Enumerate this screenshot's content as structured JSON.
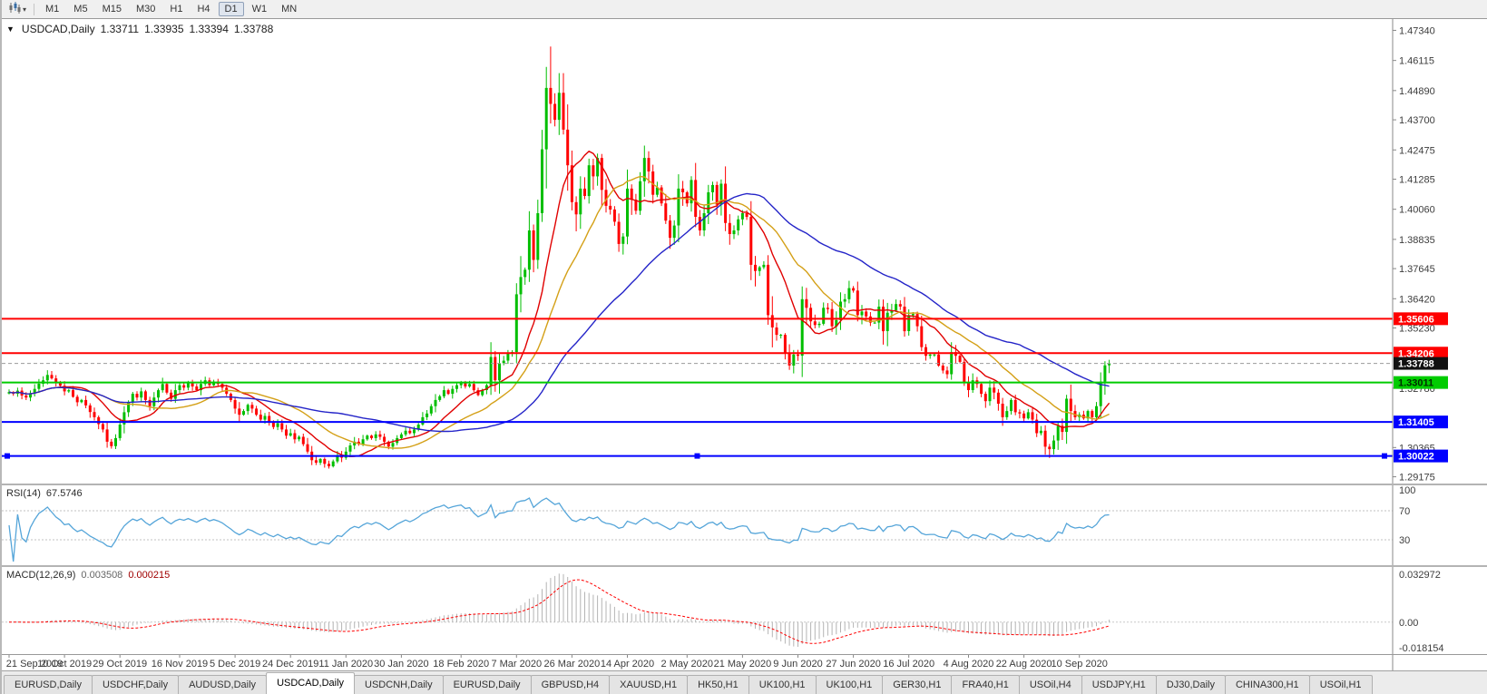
{
  "toolbar": {
    "chart_type_icon": "candlestick-chart-icon",
    "dropdown_icon": "chevron-down-icon",
    "timeframes": [
      "M1",
      "M5",
      "M15",
      "M30",
      "H1",
      "H4",
      "D1",
      "W1",
      "MN"
    ],
    "active_timeframe": "D1"
  },
  "info_line": {
    "collapse_icon": "▼",
    "symbol": "USDCAD,Daily",
    "open": "1.33711",
    "high": "1.33935",
    "low": "1.33394",
    "close": "1.33788"
  },
  "rsi_pane": {
    "label": "RSI(14)",
    "value": "67.5746",
    "ticks": [
      "100",
      "70",
      "30"
    ]
  },
  "macd_pane": {
    "label": "MACD(12,26,9)",
    "value_main": "0.003508",
    "value_signal": "0.000215",
    "tick_top": "0.032972",
    "tick_zero": "0.00",
    "tick_bottom": "-0.018154"
  },
  "tabs": {
    "active_index": 3,
    "items": [
      "EURUSD,Daily",
      "USDCHF,Daily",
      "AUDUSD,Daily",
      "USDCAD,Daily",
      "USDCNH,Daily",
      "EURUSD,Daily",
      "GBPUSD,H4",
      "XAUUSD,H1",
      "HK50,H1",
      "UK100,H1",
      "UK100,H1",
      "GER30,H1",
      "FRA40,H1",
      "USOil,H4",
      "USDJPY,H1",
      "DJ30,Daily",
      "CHINA300,H1",
      "USOil,H1"
    ]
  },
  "chart_data": {
    "type": "candlestick",
    "symbol": "USDCAD",
    "timeframe": "Daily",
    "price_axis": {
      "pane_max": 1.478,
      "pane_min": 1.289,
      "ticks": [
        "1.47340",
        "1.46115",
        "1.44890",
        "1.43700",
        "1.42475",
        "1.41285",
        "1.40060",
        "1.38835",
        "1.37645",
        "1.36420",
        "1.35230",
        "1.32780",
        "1.30365",
        "1.29175"
      ]
    },
    "date_labels": [
      "21 Sep 2019",
      "10 Oct 2019",
      "29 Oct 2019",
      "16 Nov 2019",
      "5 Dec 2019",
      "24 Dec 2019",
      "11 Jan 2020",
      "30 Jan 2020",
      "18 Feb 2020",
      "7 Mar 2020",
      "26 Mar 2020",
      "14 Apr 2020",
      "2 May 2020",
      "21 May 2020",
      "9 Jun 2020",
      "27 Jun 2020",
      "16 Jul 2020",
      "4 Aug 2020",
      "22 Aug 2020",
      "10 Sep 2020"
    ],
    "candles": {
      "up_color": "#00BE00",
      "down_color": "#FF0000",
      "closes": [
        1.3262,
        1.3255,
        1.3268,
        1.3248,
        1.324,
        1.3258,
        1.3275,
        1.3296,
        1.331,
        1.3332,
        1.3318,
        1.3301,
        1.3288,
        1.3265,
        1.327,
        1.3243,
        1.3221,
        1.323,
        1.3208,
        1.3181,
        1.316,
        1.3132,
        1.311,
        1.306,
        1.3042,
        1.3075,
        1.313,
        1.318,
        1.322,
        1.3255,
        1.324,
        1.3265,
        1.323,
        1.3205,
        1.324,
        1.327,
        1.3295,
        1.326,
        1.3235,
        1.327,
        1.329,
        1.328,
        1.33,
        1.3285,
        1.327,
        1.3295,
        1.331,
        1.329,
        1.3305,
        1.3295,
        1.328,
        1.3255,
        1.323,
        1.3195,
        1.317,
        1.3185,
        1.321,
        1.3195,
        1.317,
        1.315,
        1.3165,
        1.314,
        1.312,
        1.3135,
        1.311,
        1.3085,
        1.3095,
        1.307,
        1.308,
        1.305,
        1.302,
        1.2985,
        1.2975,
        1.299,
        1.297,
        1.296,
        1.298,
        1.3005,
        1.2995,
        1.302,
        1.3045,
        1.306,
        1.305,
        1.307,
        1.3085,
        1.3075,
        1.309,
        1.308,
        1.306,
        1.304,
        1.3055,
        1.3075,
        1.309,
        1.3105,
        1.3095,
        1.311,
        1.313,
        1.316,
        1.3175,
        1.3205,
        1.323,
        1.3245,
        1.327,
        1.3255,
        1.3275,
        1.329,
        1.33,
        1.3285,
        1.3295,
        1.327,
        1.325,
        1.327,
        1.329,
        1.3405,
        1.331,
        1.338,
        1.339,
        1.342,
        1.3425,
        1.366,
        1.373,
        1.376,
        1.392,
        1.38,
        1.399,
        1.425,
        1.45,
        1.4435,
        1.437,
        1.448,
        1.433,
        1.4185,
        1.4035,
        1.3985,
        1.409,
        1.406,
        1.4185,
        1.414,
        1.4215,
        1.4085,
        1.402,
        1.4005,
        1.3955,
        1.3865,
        1.3895,
        1.409,
        1.4045,
        1.4,
        1.412,
        1.4215,
        1.416,
        1.4065,
        1.4095,
        1.403,
        1.396,
        1.389,
        1.394,
        1.409,
        1.4075,
        1.403,
        1.4125,
        1.3975,
        1.392,
        1.399,
        1.4075,
        1.4105,
        1.4025,
        1.411,
        1.395,
        1.3905,
        1.392,
        1.3965,
        1.399,
        1.3975,
        1.378,
        1.3755,
        1.377,
        1.378,
        1.3575,
        1.3525,
        1.3495,
        1.3495,
        1.342,
        1.337,
        1.3415,
        1.341,
        1.364,
        1.3605,
        1.355,
        1.3535,
        1.354,
        1.3605,
        1.36,
        1.353,
        1.3555,
        1.363,
        1.364,
        1.3685,
        1.3675,
        1.3575,
        1.359,
        1.357,
        1.3545,
        1.3545,
        1.361,
        1.351,
        1.3585,
        1.3595,
        1.362,
        1.361,
        1.351,
        1.3575,
        1.358,
        1.353,
        1.3445,
        1.341,
        1.3415,
        1.3415,
        1.337,
        1.335,
        1.3335,
        1.3425,
        1.341,
        1.3385,
        1.33,
        1.327,
        1.331,
        1.3295,
        1.3255,
        1.3225,
        1.328,
        1.326,
        1.3215,
        1.316,
        1.3185,
        1.323,
        1.318,
        1.3175,
        1.3155,
        1.318,
        1.315,
        1.3095,
        1.3105,
        1.304,
        1.303,
        1.3065,
        1.3125,
        1.31,
        1.3235,
        1.3185,
        1.316,
        1.317,
        1.3155,
        1.3185,
        1.316,
        1.3205,
        1.3305,
        1.3371,
        1.33788
      ],
      "high_overrides": {
        "113": 1.3465,
        "119": 1.3705,
        "122": 1.3998,
        "126": 1.4585,
        "127": 1.4668,
        "129": 1.456,
        "149": 1.4265,
        "197": 1.3715,
        "258": 1.33935
      },
      "low_overrides": {
        "24": 1.3032,
        "71": 1.2965,
        "75": 1.2951,
        "182": 1.3395,
        "184": 1.3338,
        "244": 1.2994,
        "258": 1.33394
      }
    },
    "last_candle": {
      "open": 1.33711,
      "high": 1.33935,
      "low": 1.33394,
      "close": 1.33788
    },
    "moving_averages": [
      {
        "name": "ma-fast-red",
        "period": 12,
        "color": "#E00000"
      },
      {
        "name": "ma-mid-yellow",
        "period": 24,
        "color": "#D4A017"
      },
      {
        "name": "ma-slow-blue",
        "period": 52,
        "color": "#2424C8"
      }
    ],
    "horizontal_lines": [
      {
        "price": 1.35606,
        "label": "1.35606",
        "color": "#FF0000",
        "text_color": "#FFFFFF",
        "selected": false
      },
      {
        "price": 1.34206,
        "label": "1.34206",
        "color": "#FF0000",
        "text_color": "#FFFFFF",
        "selected": false
      },
      {
        "price": 1.33011,
        "label": "1.33011",
        "color": "#00CC00",
        "text_color": "#002A00",
        "selected": false
      },
      {
        "price": 1.31405,
        "label": "1.31405",
        "color": "#0000FF",
        "text_color": "#FFFFFF",
        "selected": false
      },
      {
        "price": 1.30022,
        "label": "1.30022",
        "color": "#0000FF",
        "text_color": "#FFFFFF",
        "selected": true
      }
    ],
    "current_price": {
      "value": 1.33788,
      "label": "1.33788",
      "line_color": "#9a9a9a",
      "badge_color": "#111111"
    },
    "rsi": {
      "period": 14,
      "color": "#55A5D9",
      "levels": [
        70,
        30
      ],
      "level_color": "#c0c0c0"
    },
    "macd": {
      "fast": 12,
      "slow": 26,
      "signal": 9,
      "scale_max": 0.032972,
      "scale_min": -0.018154,
      "histogram_color": "#b4b4b4",
      "signal_color": "#FF0000"
    }
  }
}
